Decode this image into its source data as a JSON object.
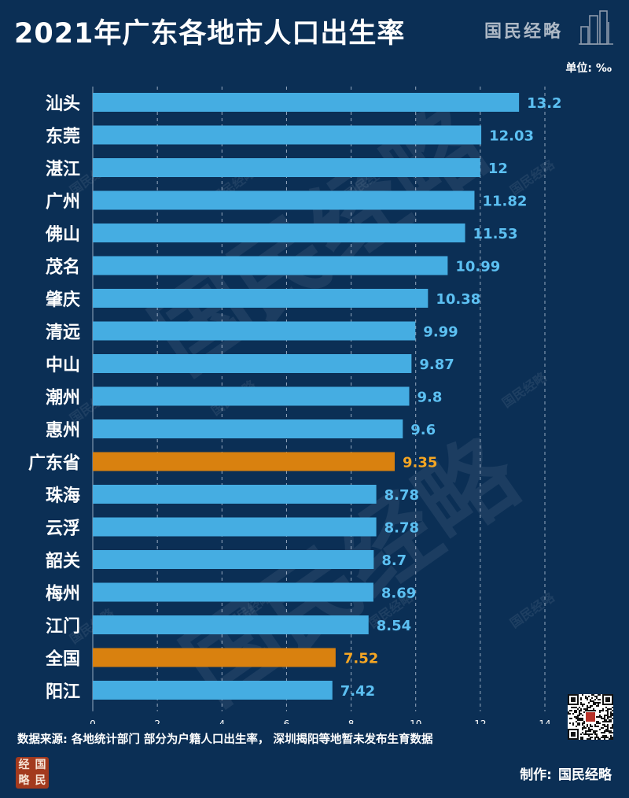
{
  "header": {
    "title": "2021年广东各地市人口出生率",
    "brand": "国民经略",
    "unit": "单位: ‰"
  },
  "colors": {
    "background": "#0b2f55",
    "bar": "#45ade2",
    "bar_highlight": "#d9810f",
    "value_label": "#5cc0f2",
    "value_label_highlight": "#f5a623"
  },
  "chart_data": {
    "type": "bar",
    "orientation": "horizontal",
    "categories": [
      "汕头",
      "东莞",
      "湛江",
      "广州",
      "佛山",
      "茂名",
      "肇庆",
      "清远",
      "中山",
      "潮州",
      "惠州",
      "广东省",
      "珠海",
      "云浮",
      "韶关",
      "梅州",
      "江门",
      "全国",
      "阳江"
    ],
    "values": [
      13.2,
      12.03,
      12,
      11.82,
      11.53,
      10.99,
      10.38,
      9.99,
      9.87,
      9.8,
      9.6,
      9.35,
      8.78,
      8.78,
      8.7,
      8.69,
      8.54,
      7.52,
      7.42
    ],
    "value_labels": [
      "13.2",
      "12.03",
      "12",
      "11.82",
      "11.53",
      "10.99",
      "10.38",
      "9.99",
      "9.87",
      "9.8",
      "9.6",
      "9.35",
      "8.78",
      "8.78",
      "8.7",
      "8.69",
      "8.54",
      "7.52",
      "7.42"
    ],
    "highlight": [
      "广东省",
      "全国"
    ],
    "xlim": [
      0,
      14
    ],
    "xticks": [
      0,
      2,
      4,
      6,
      8,
      10,
      12,
      14
    ],
    "grid": "vertical dashed"
  },
  "watermark": {
    "large": "国民经略",
    "small": "国民经略"
  },
  "footer": {
    "source": "数据来源: 各地统计部门 部分为户籍人口出生率， 深圳揭阳等地暂未发布生育数据",
    "made_label": "制作:",
    "made_by": "国民经略",
    "logo_chars": [
      "经",
      "国",
      "略",
      "民"
    ]
  }
}
